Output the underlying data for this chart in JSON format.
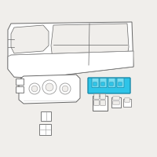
{
  "bg_color": "#f0eeeb",
  "line_color": "#888888",
  "dark_line": "#666666",
  "thin_line": "#999999",
  "blue_fill": "#2ec4e8",
  "blue_stroke": "#1a8aaa",
  "blue_light": "#7adcf0",
  "gray_fill": "#e8e8e8",
  "gray_stroke": "#999999",
  "white_fill": "#ffffff",
  "none_fill": "none"
}
